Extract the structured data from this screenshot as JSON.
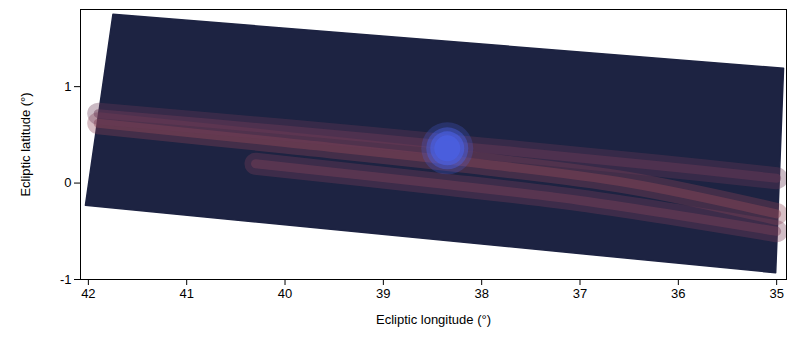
{
  "chart_data": {
    "type": "image",
    "xlabel": "Ecliptic longitude (°)",
    "ylabel": "Ecliptic latitude (°)",
    "xlim": [
      42.08,
      34.9
    ],
    "ylim": [
      -1,
      1.8
    ],
    "xticks": [
      42,
      41,
      40,
      39,
      38,
      37,
      36,
      35
    ],
    "yticks": [
      -1,
      0,
      1
    ],
    "footprint": {
      "color": "#1d2342",
      "points": [
        [
          41.75,
          1.75
        ],
        [
          34.93,
          1.19
        ],
        [
          35.01,
          -0.93
        ],
        [
          42.03,
          -0.23
        ]
      ]
    },
    "bands": [
      {
        "color": "#8c4656",
        "values": [
          [
            41.9,
            0.62
          ],
          [
            40,
            0.42
          ],
          [
            38,
            0.2
          ],
          [
            36.5,
            0.0
          ],
          [
            35.0,
            -0.32
          ]
        ]
      },
      {
        "color": "#7a4058",
        "values": [
          [
            40.3,
            0.2
          ],
          [
            38.5,
            0.0
          ],
          [
            37,
            -0.18
          ],
          [
            35.0,
            -0.5
          ]
        ]
      },
      {
        "color": "#6a3a56",
        "values": [
          [
            41.9,
            0.72
          ],
          [
            40,
            0.55
          ],
          [
            38,
            0.36
          ],
          [
            36.2,
            0.18
          ],
          [
            35.0,
            0.05
          ]
        ]
      }
    ],
    "source": {
      "x": 38.35,
      "y": 0.36,
      "color": "#4a5fe0"
    }
  }
}
